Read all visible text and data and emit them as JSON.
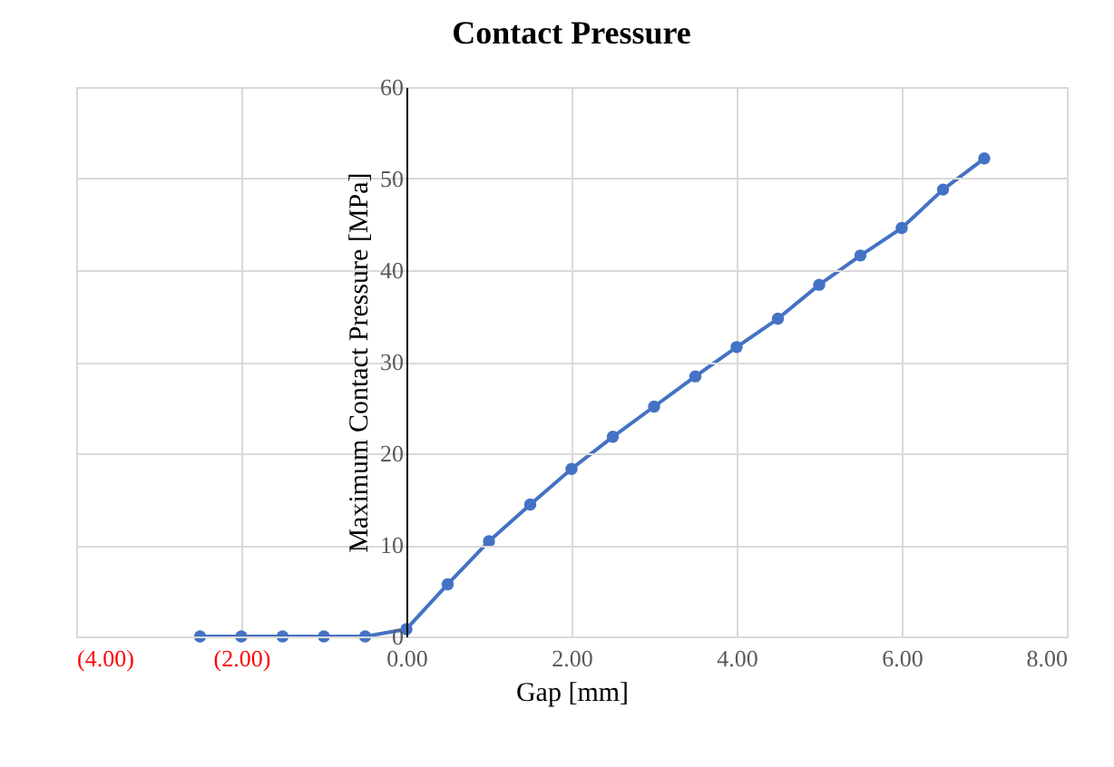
{
  "chart_data": {
    "type": "line",
    "title": "Contact Pressure",
    "xlabel": "Gap [mm]",
    "ylabel": "Maximum Contact Pressure [MPa]",
    "x": [
      -2.5,
      -2,
      -1.5,
      -1,
      -0.5,
      0,
      0.5,
      1,
      1.5,
      2,
      2.5,
      3,
      3.5,
      4,
      4.5,
      5,
      5.5,
      6,
      6.5,
      7
    ],
    "series": [
      {
        "color": "#4472c4",
        "values": [
          0,
          0,
          0,
          0,
          0,
          0.8,
          5.7,
          10.4,
          14.4,
          18.3,
          21.8,
          25.1,
          28.4,
          31.6,
          34.7,
          38.4,
          41.6,
          44.6,
          48.8,
          52.2
        ]
      }
    ],
    "xlim": [
      -4,
      8
    ],
    "xticks": [
      {
        "value": -4,
        "label": "(4.00)"
      },
      {
        "value": -2,
        "label": "(2.00)"
      },
      {
        "value": 0,
        "label": "0.00"
      },
      {
        "value": 2,
        "label": "2.00"
      },
      {
        "value": 4,
        "label": "4.00"
      },
      {
        "value": 6,
        "label": "6.00"
      },
      {
        "value": 8,
        "label": "8.00"
      }
    ],
    "ylim": [
      0,
      60
    ],
    "yticks": [
      0,
      10,
      20,
      30,
      40,
      50,
      60
    ],
    "grid": true,
    "marker": "circle",
    "line_style": "solid"
  }
}
